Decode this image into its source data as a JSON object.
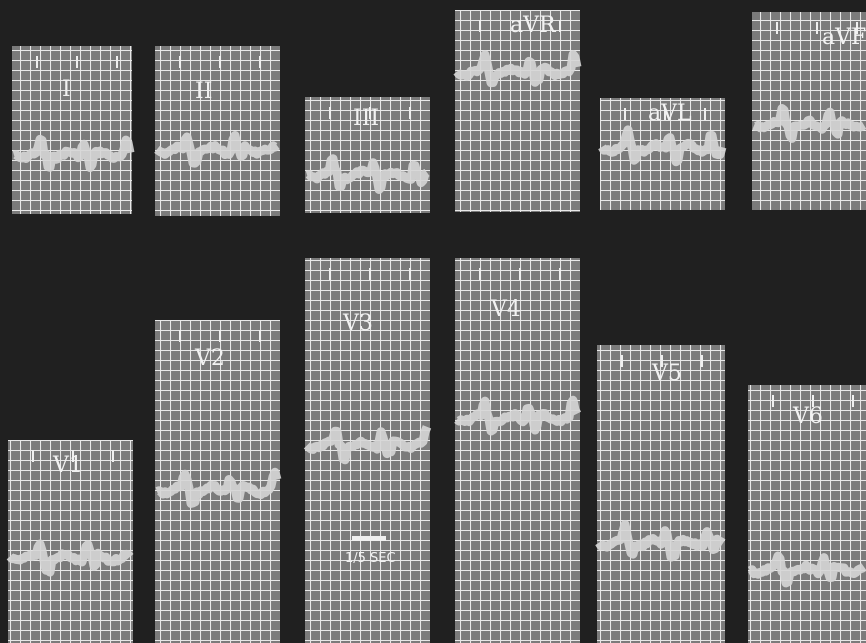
{
  "leads": [
    "I",
    "II",
    "III",
    "aVR",
    "aVL",
    "aVF",
    "V1",
    "V2",
    "V3",
    "V4",
    "V5",
    "V6"
  ],
  "scale_label": "1/5 SEC"
}
